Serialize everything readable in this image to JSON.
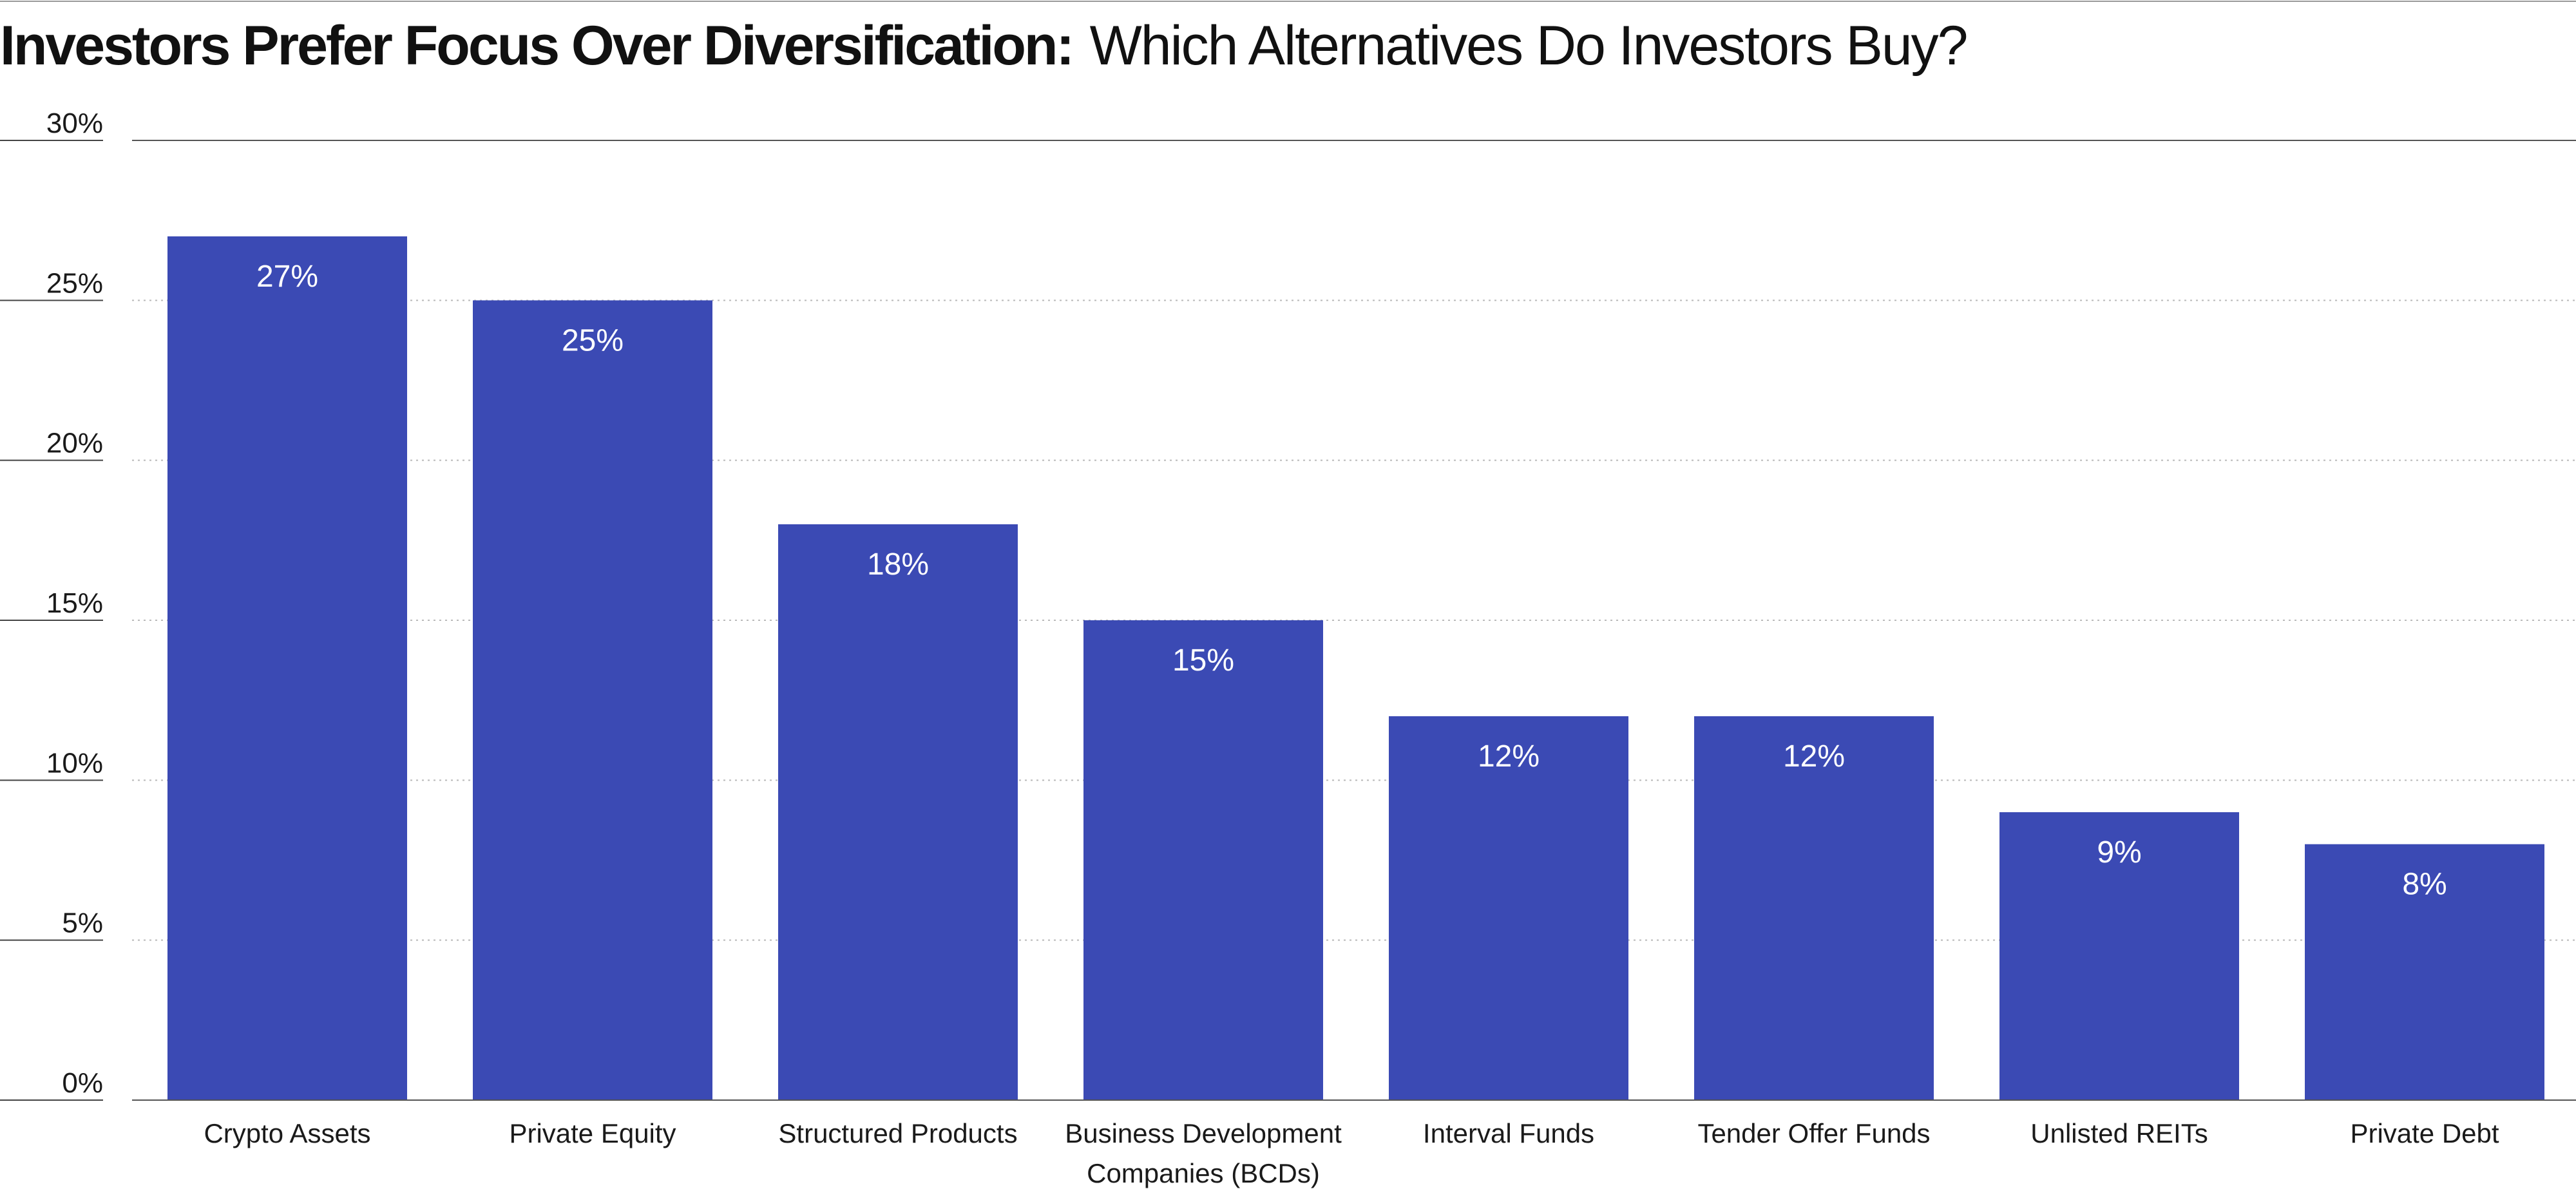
{
  "chart_data": {
    "type": "bar",
    "title_bold": "Investors Prefer Focus Over Diversification:",
    "title_light": "Which Alternatives Do Investors Buy?",
    "xlabel": "",
    "ylabel": "",
    "ylim": [
      0,
      30
    ],
    "yticks": [
      0,
      5,
      10,
      15,
      20,
      25,
      30
    ],
    "ytick_labels": [
      "0%",
      "5%",
      "10%",
      "15%",
      "20%",
      "25%",
      "30%"
    ],
    "grid": true,
    "categories": [
      [
        "Crypto Assets"
      ],
      [
        "Private Equity"
      ],
      [
        "Structured Products"
      ],
      [
        "Business Development",
        "Companies (BCDs)"
      ],
      [
        "Interval Funds"
      ],
      [
        "Tender Offer Funds"
      ],
      [
        "Unlisted REITs"
      ],
      [
        "Private Debt"
      ]
    ],
    "values": [
      27,
      25,
      18,
      15,
      12,
      12,
      9,
      8
    ],
    "data_labels": [
      "27%",
      "25%",
      "18%",
      "15%",
      "12%",
      "12%",
      "9%",
      "8%"
    ],
    "bar_color": "#3b4ab4"
  }
}
